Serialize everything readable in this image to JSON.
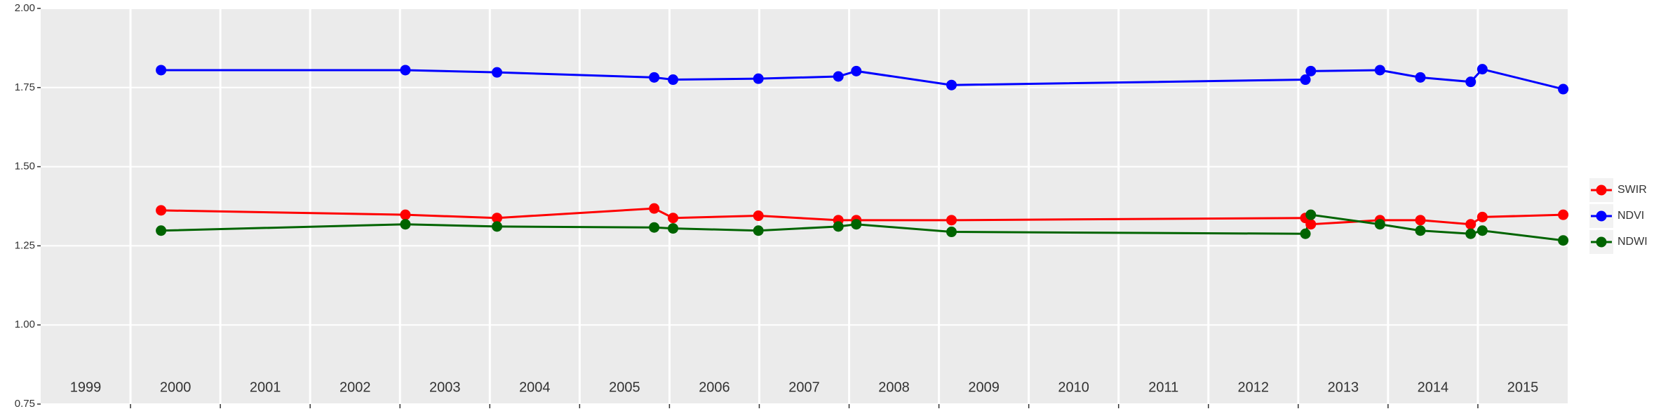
{
  "chart_data": {
    "type": "line",
    "x": [
      2000.34,
      2003.06,
      2004.08,
      2005.83,
      2006.04,
      2006.99,
      2007.88,
      2008.08,
      2009.14,
      2013.08,
      2013.14,
      2013.91,
      2014.36,
      2014.92,
      2015.05,
      2015.95
    ],
    "series": [
      {
        "name": "SWIR",
        "color": "#ff0000",
        "values": [
          1.362,
          1.348,
          1.338,
          1.368,
          1.338,
          1.345,
          1.331,
          1.331,
          1.331,
          1.338,
          1.318,
          1.331,
          1.331,
          1.318,
          1.341,
          1.348
        ]
      },
      {
        "name": "NDVI",
        "color": "#0000ff",
        "values": [
          1.805,
          1.805,
          1.798,
          1.782,
          1.775,
          1.778,
          1.785,
          1.802,
          1.758,
          1.775,
          1.802,
          1.805,
          1.782,
          1.768,
          1.808,
          1.745
        ]
      },
      {
        "name": "NDWI",
        "color": "#006400",
        "values": [
          1.298,
          1.318,
          1.311,
          1.308,
          1.305,
          1.298,
          1.311,
          1.318,
          1.294,
          1.288,
          1.348,
          1.318,
          1.298,
          1.288,
          1.298,
          1.267
        ]
      }
    ],
    "xlim": [
      1999,
      2016
    ],
    "xticks": [
      2000,
      2001,
      2002,
      2003,
      2004,
      2005,
      2006,
      2007,
      2008,
      2009,
      2010,
      2011,
      2012,
      2013,
      2014,
      2015
    ],
    "year_labels": [
      1999,
      2000,
      2001,
      2002,
      2003,
      2004,
      2005,
      2006,
      2007,
      2008,
      2009,
      2010,
      2011,
      2012,
      2013,
      2014,
      2015
    ],
    "ylim": [
      0.75,
      2.0
    ],
    "yticks": [
      0.75,
      {
        "value": 1.0,
        "label": "1.00"
      },
      {
        "value": 1.25,
        "label": "1.25"
      },
      {
        "value": 1.5,
        "label": "1.50"
      },
      {
        "value": 1.75,
        "label": "1.75"
      },
      {
        "value": 2.0,
        "label": "2.00"
      }
    ],
    "grid": true,
    "legend": "right"
  }
}
